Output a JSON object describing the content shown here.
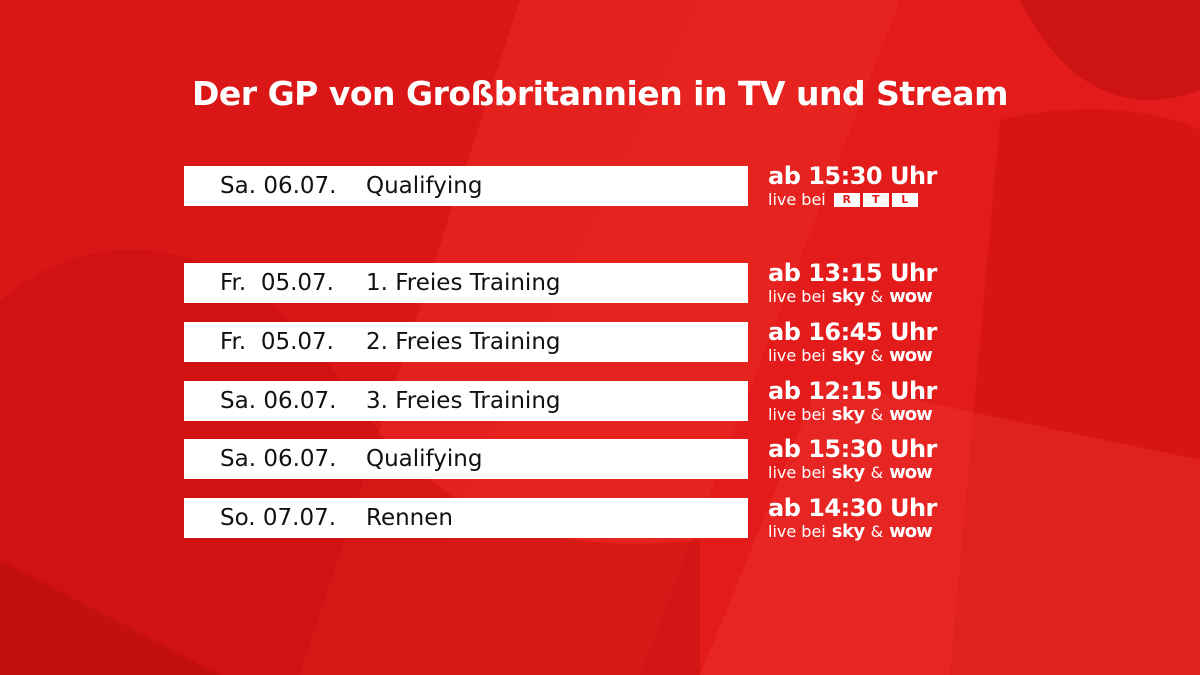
{
  "title": "Der GP von Großbritannien in TV und Stream",
  "colors": {
    "background": "#e31b1b",
    "bar": "#ffffff",
    "text_on_bar": "#111111"
  },
  "top_entry": {
    "date": "Sa. 06.07.",
    "session": "Qualifying",
    "time": "ab 15:30 Uhr",
    "live_prefix": "live bei",
    "broadcaster_logo": "rtl-logo",
    "rtl_letters": [
      "R",
      "T",
      "L"
    ]
  },
  "schedule": [
    {
      "date": "Fr.  05.07.",
      "session": "1. Freies Training",
      "time": "ab 13:15 Uhr",
      "live_prefix": "live bei",
      "brand1": "sky",
      "amp": "&",
      "brand2": "wow"
    },
    {
      "date": "Fr.  05.07.",
      "session": "2. Freies Training",
      "time": "ab 16:45 Uhr",
      "live_prefix": "live bei",
      "brand1": "sky",
      "amp": "&",
      "brand2": "wow"
    },
    {
      "date": "Sa. 06.07.",
      "session": "3. Freies Training",
      "time": "ab 12:15 Uhr",
      "live_prefix": "live bei",
      "brand1": "sky",
      "amp": "&",
      "brand2": "wow"
    },
    {
      "date": "Sa. 06.07.",
      "session": "Qualifying",
      "time": "ab 15:30 Uhr",
      "live_prefix": "live bei",
      "brand1": "sky",
      "amp": "&",
      "brand2": "wow"
    },
    {
      "date": "So. 07.07.",
      "session": "Rennen",
      "time": "ab 14:30 Uhr",
      "live_prefix": "live bei",
      "brand1": "sky",
      "amp": "&",
      "brand2": "wow"
    }
  ]
}
